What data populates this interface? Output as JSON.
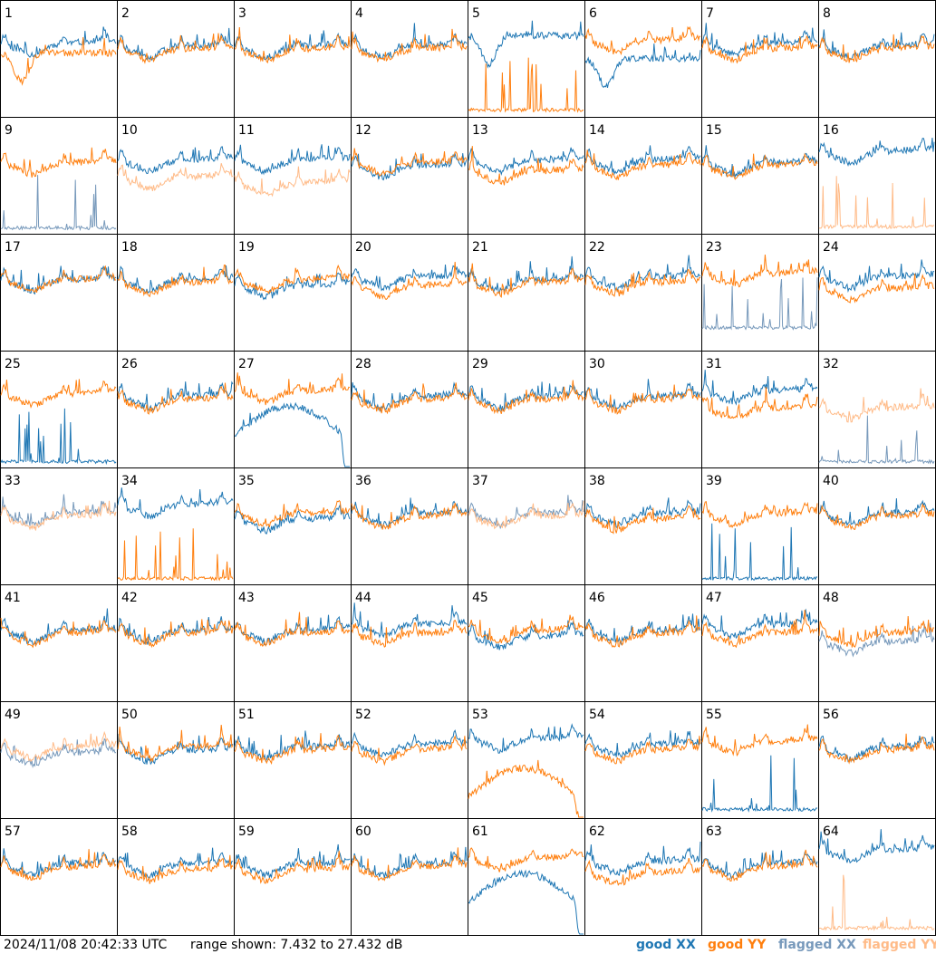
{
  "footer": {
    "timestamp": "2024/11/08 20:42:33 UTC",
    "range_text": "range shown: 7.432 to 27.432 dB",
    "legend": {
      "good_xx": "good XX",
      "good_yy": "good YY",
      "flagged_xx": "flagged XX",
      "flagged_yy": "flagged YY"
    }
  },
  "colors": {
    "good_xx": "#1f77b4",
    "good_yy": "#ff7f0e",
    "flagged_xx": "#7799bb",
    "flagged_yy": "#ffbb88"
  },
  "chart_data": {
    "type": "line",
    "ylim": [
      7.432,
      27.432
    ],
    "yunit": "dB",
    "grid": {
      "rows": 8,
      "cols": 8
    },
    "panels": [
      {
        "label": "1",
        "xx": "good",
        "yy": "good",
        "xx_base": 19.5,
        "yy_base": 18.5,
        "xx_shape": "normal",
        "yy_shape": "dip"
      },
      {
        "label": "2",
        "xx": "good",
        "yy": "good",
        "xx_base": 19.0,
        "yy_base": 18.5,
        "xx_shape": "normal",
        "yy_shape": "normal"
      },
      {
        "label": "3",
        "xx": "good",
        "yy": "good",
        "xx_base": 19.0,
        "yy_base": 18.5,
        "xx_shape": "normal",
        "yy_shape": "normal"
      },
      {
        "label": "4",
        "xx": "good",
        "yy": "good",
        "xx_base": 19.0,
        "yy_base": 18.5,
        "xx_shape": "normal",
        "yy_shape": "normal"
      },
      {
        "label": "5",
        "xx": "good",
        "yy": "good",
        "xx_base": 21.5,
        "yy_base": 8.2,
        "xx_shape": "dip",
        "yy_shape": "spikes"
      },
      {
        "label": "6",
        "xx": "good",
        "yy": "good",
        "xx_base": 17.5,
        "yy_base": 20.0,
        "xx_shape": "dip",
        "yy_shape": "normal"
      },
      {
        "label": "7",
        "xx": "good",
        "yy": "good",
        "xx_base": 19.5,
        "yy_base": 18.5,
        "xx_shape": "normal",
        "yy_shape": "normal"
      },
      {
        "label": "8",
        "xx": "good",
        "yy": "good",
        "xx_base": 19.0,
        "yy_base": 18.5,
        "xx_shape": "normal",
        "yy_shape": "normal"
      },
      {
        "label": "9",
        "xx": "flagged",
        "yy": "good",
        "xx_base": 8.0,
        "yy_base": 19.0,
        "xx_shape": "spikes",
        "yy_shape": "normal"
      },
      {
        "label": "10",
        "xx": "good",
        "yy": "flagged",
        "xx_base": 19.5,
        "yy_base": 16.5,
        "xx_shape": "normal",
        "yy_shape": "normal"
      },
      {
        "label": "11",
        "xx": "good",
        "yy": "flagged",
        "xx_base": 19.5,
        "yy_base": 15.5,
        "xx_shape": "normal",
        "yy_shape": "normal"
      },
      {
        "label": "12",
        "xx": "good",
        "yy": "good",
        "xx_base": 18.5,
        "yy_base": 19.0,
        "xx_shape": "normal",
        "yy_shape": "normal"
      },
      {
        "label": "13",
        "xx": "good",
        "yy": "good",
        "xx_base": 19.5,
        "yy_base": 17.5,
        "xx_shape": "normal",
        "yy_shape": "normal"
      },
      {
        "label": "14",
        "xx": "good",
        "yy": "good",
        "xx_base": 19.5,
        "yy_base": 18.5,
        "xx_shape": "normal",
        "yy_shape": "normal"
      },
      {
        "label": "15",
        "xx": "good",
        "yy": "good",
        "xx_base": 19.0,
        "yy_base": 18.5,
        "xx_shape": "normal",
        "yy_shape": "normal"
      },
      {
        "label": "16",
        "xx": "good",
        "yy": "flagged",
        "xx_base": 21.0,
        "yy_base": 8.2,
        "xx_shape": "normal",
        "yy_shape": "spikes"
      },
      {
        "label": "17",
        "xx": "good",
        "yy": "good",
        "xx_base": 19.0,
        "yy_base": 19.0,
        "xx_shape": "normal",
        "yy_shape": "normal"
      },
      {
        "label": "18",
        "xx": "good",
        "yy": "good",
        "xx_base": 19.0,
        "yy_base": 18.5,
        "xx_shape": "normal",
        "yy_shape": "normal"
      },
      {
        "label": "19",
        "xx": "good",
        "yy": "good",
        "xx_base": 18.0,
        "yy_base": 19.0,
        "xx_shape": "normal",
        "yy_shape": "normal"
      },
      {
        "label": "20",
        "xx": "good",
        "yy": "good",
        "xx_base": 19.5,
        "yy_base": 18.0,
        "xx_shape": "normal",
        "yy_shape": "normal"
      },
      {
        "label": "21",
        "xx": "good",
        "yy": "good",
        "xx_base": 19.0,
        "yy_base": 18.5,
        "xx_shape": "normal",
        "yy_shape": "normal"
      },
      {
        "label": "22",
        "xx": "good",
        "yy": "good",
        "xx_base": 19.5,
        "yy_base": 18.5,
        "xx_shape": "normal",
        "yy_shape": "normal"
      },
      {
        "label": "23",
        "xx": "flagged",
        "yy": "good",
        "xx_base": 11.0,
        "yy_base": 20.0,
        "xx_shape": "spikes",
        "yy_shape": "normal"
      },
      {
        "label": "24",
        "xx": "good",
        "yy": "good",
        "xx_base": 19.5,
        "yy_base": 17.5,
        "xx_shape": "normal",
        "yy_shape": "normal"
      },
      {
        "label": "25",
        "xx": "good",
        "yy": "good",
        "xx_base": 8.0,
        "yy_base": 19.5,
        "xx_shape": "spikes",
        "yy_shape": "normal"
      },
      {
        "label": "26",
        "xx": "good",
        "yy": "good",
        "xx_base": 19.0,
        "yy_base": 18.5,
        "xx_shape": "normal",
        "yy_shape": "normal"
      },
      {
        "label": "27",
        "xx": "good",
        "yy": "good",
        "xx_base": 15.0,
        "yy_base": 20.0,
        "xx_shape": "arch",
        "yy_shape": "normal"
      },
      {
        "label": "28",
        "xx": "good",
        "yy": "good",
        "xx_base": 19.0,
        "yy_base": 18.5,
        "xx_shape": "normal",
        "yy_shape": "normal"
      },
      {
        "label": "29",
        "xx": "good",
        "yy": "good",
        "xx_base": 19.0,
        "yy_base": 18.5,
        "xx_shape": "normal",
        "yy_shape": "normal"
      },
      {
        "label": "30",
        "xx": "good",
        "yy": "good",
        "xx_base": 19.0,
        "yy_base": 18.5,
        "xx_shape": "normal",
        "yy_shape": "normal"
      },
      {
        "label": "31",
        "xx": "good",
        "yy": "good",
        "xx_base": 20.0,
        "yy_base": 17.0,
        "xx_shape": "normal",
        "yy_shape": "normal"
      },
      {
        "label": "32",
        "xx": "flagged",
        "yy": "flagged",
        "xx_base": 8.0,
        "yy_base": 17.0,
        "xx_shape": "spikes",
        "yy_shape": "normal"
      },
      {
        "label": "33",
        "xx": "flagged",
        "yy": "flagged",
        "xx_base": 19.0,
        "yy_base": 18.5,
        "xx_shape": "normal",
        "yy_shape": "normal"
      },
      {
        "label": "34",
        "xx": "good",
        "yy": "good",
        "xx_base": 20.5,
        "yy_base": 8.0,
        "xx_shape": "normal",
        "yy_shape": "spikes"
      },
      {
        "label": "35",
        "xx": "good",
        "yy": "good",
        "xx_base": 18.0,
        "yy_base": 19.0,
        "xx_shape": "normal",
        "yy_shape": "normal"
      },
      {
        "label": "36",
        "xx": "good",
        "yy": "good",
        "xx_base": 19.0,
        "yy_base": 18.5,
        "xx_shape": "normal",
        "yy_shape": "normal"
      },
      {
        "label": "37",
        "xx": "flagged",
        "yy": "flagged",
        "xx_base": 19.0,
        "yy_base": 18.5,
        "xx_shape": "normal",
        "yy_shape": "normal"
      },
      {
        "label": "38",
        "xx": "good",
        "yy": "good",
        "xx_base": 19.0,
        "yy_base": 18.0,
        "xx_shape": "normal",
        "yy_shape": "normal"
      },
      {
        "label": "39",
        "xx": "good",
        "yy": "good",
        "xx_base": 8.0,
        "yy_base": 19.0,
        "xx_shape": "spikes",
        "yy_shape": "normal"
      },
      {
        "label": "40",
        "xx": "good",
        "yy": "good",
        "xx_base": 19.0,
        "yy_base": 18.5,
        "xx_shape": "normal",
        "yy_shape": "normal"
      },
      {
        "label": "41",
        "xx": "good",
        "yy": "good",
        "xx_base": 19.0,
        "yy_base": 18.5,
        "xx_shape": "normal",
        "yy_shape": "normal"
      },
      {
        "label": "42",
        "xx": "good",
        "yy": "good",
        "xx_base": 19.0,
        "yy_base": 18.5,
        "xx_shape": "normal",
        "yy_shape": "normal"
      },
      {
        "label": "43",
        "xx": "good",
        "yy": "good",
        "xx_base": 19.0,
        "yy_base": 18.5,
        "xx_shape": "normal",
        "yy_shape": "normal"
      },
      {
        "label": "44",
        "xx": "good",
        "yy": "good",
        "xx_base": 20.0,
        "yy_base": 18.5,
        "xx_shape": "normal",
        "yy_shape": "normal"
      },
      {
        "label": "45",
        "xx": "good",
        "yy": "good",
        "xx_base": 18.0,
        "yy_base": 19.0,
        "xx_shape": "normal",
        "yy_shape": "normal"
      },
      {
        "label": "46",
        "xx": "good",
        "yy": "good",
        "xx_base": 19.0,
        "yy_base": 18.5,
        "xx_shape": "normal",
        "yy_shape": "normal"
      },
      {
        "label": "47",
        "xx": "good",
        "yy": "good",
        "xx_base": 20.0,
        "yy_base": 18.5,
        "xx_shape": "normal",
        "yy_shape": "normal"
      },
      {
        "label": "48",
        "xx": "flagged",
        "yy": "good",
        "xx_base": 17.0,
        "yy_base": 18.5,
        "xx_shape": "normal",
        "yy_shape": "normal"
      },
      {
        "label": "49",
        "xx": "flagged",
        "yy": "flagged",
        "xx_base": 18.0,
        "yy_base": 19.0,
        "xx_shape": "normal",
        "yy_shape": "normal"
      },
      {
        "label": "50",
        "xx": "good",
        "yy": "good",
        "xx_base": 18.5,
        "yy_base": 19.0,
        "xx_shape": "normal",
        "yy_shape": "normal"
      },
      {
        "label": "51",
        "xx": "good",
        "yy": "good",
        "xx_base": 19.0,
        "yy_base": 18.5,
        "xx_shape": "normal",
        "yy_shape": "normal"
      },
      {
        "label": "52",
        "xx": "good",
        "yy": "good",
        "xx_base": 19.5,
        "yy_base": 18.5,
        "xx_shape": "normal",
        "yy_shape": "normal"
      },
      {
        "label": "53",
        "xx": "good",
        "yy": "good",
        "xx_base": 20.5,
        "yy_base": 13.0,
        "xx_shape": "normal",
        "yy_shape": "arch"
      },
      {
        "label": "54",
        "xx": "good",
        "yy": "good",
        "xx_base": 19.5,
        "yy_base": 18.5,
        "xx_shape": "normal",
        "yy_shape": "normal"
      },
      {
        "label": "55",
        "xx": "good",
        "yy": "good",
        "xx_base": 8.5,
        "yy_base": 20.0,
        "xx_shape": "spikes",
        "yy_shape": "normal"
      },
      {
        "label": "56",
        "xx": "good",
        "yy": "good",
        "xx_base": 19.0,
        "yy_base": 18.5,
        "xx_shape": "normal",
        "yy_shape": "normal"
      },
      {
        "label": "57",
        "xx": "good",
        "yy": "good",
        "xx_base": 19.0,
        "yy_base": 18.5,
        "xx_shape": "normal",
        "yy_shape": "normal"
      },
      {
        "label": "58",
        "xx": "good",
        "yy": "good",
        "xx_base": 19.0,
        "yy_base": 18.0,
        "xx_shape": "normal",
        "yy_shape": "normal"
      },
      {
        "label": "59",
        "xx": "good",
        "yy": "good",
        "xx_base": 19.0,
        "yy_base": 18.0,
        "xx_shape": "normal",
        "yy_shape": "normal"
      },
      {
        "label": "60",
        "xx": "good",
        "yy": "good",
        "xx_base": 19.0,
        "yy_base": 18.5,
        "xx_shape": "normal",
        "yy_shape": "normal"
      },
      {
        "label": "61",
        "xx": "good",
        "yy": "good",
        "xx_base": 15.0,
        "yy_base": 20.0,
        "xx_shape": "arch",
        "yy_shape": "normal"
      },
      {
        "label": "62",
        "xx": "good",
        "yy": "good",
        "xx_base": 19.5,
        "yy_base": 17.5,
        "xx_shape": "normal",
        "yy_shape": "normal"
      },
      {
        "label": "63",
        "xx": "good",
        "yy": "good",
        "xx_base": 19.0,
        "yy_base": 18.5,
        "xx_shape": "normal",
        "yy_shape": "normal"
      },
      {
        "label": "64",
        "xx": "good",
        "yy": "flagged",
        "xx_base": 21.5,
        "yy_base": 8.2,
        "xx_shape": "normal",
        "yy_shape": "spikes"
      }
    ]
  }
}
